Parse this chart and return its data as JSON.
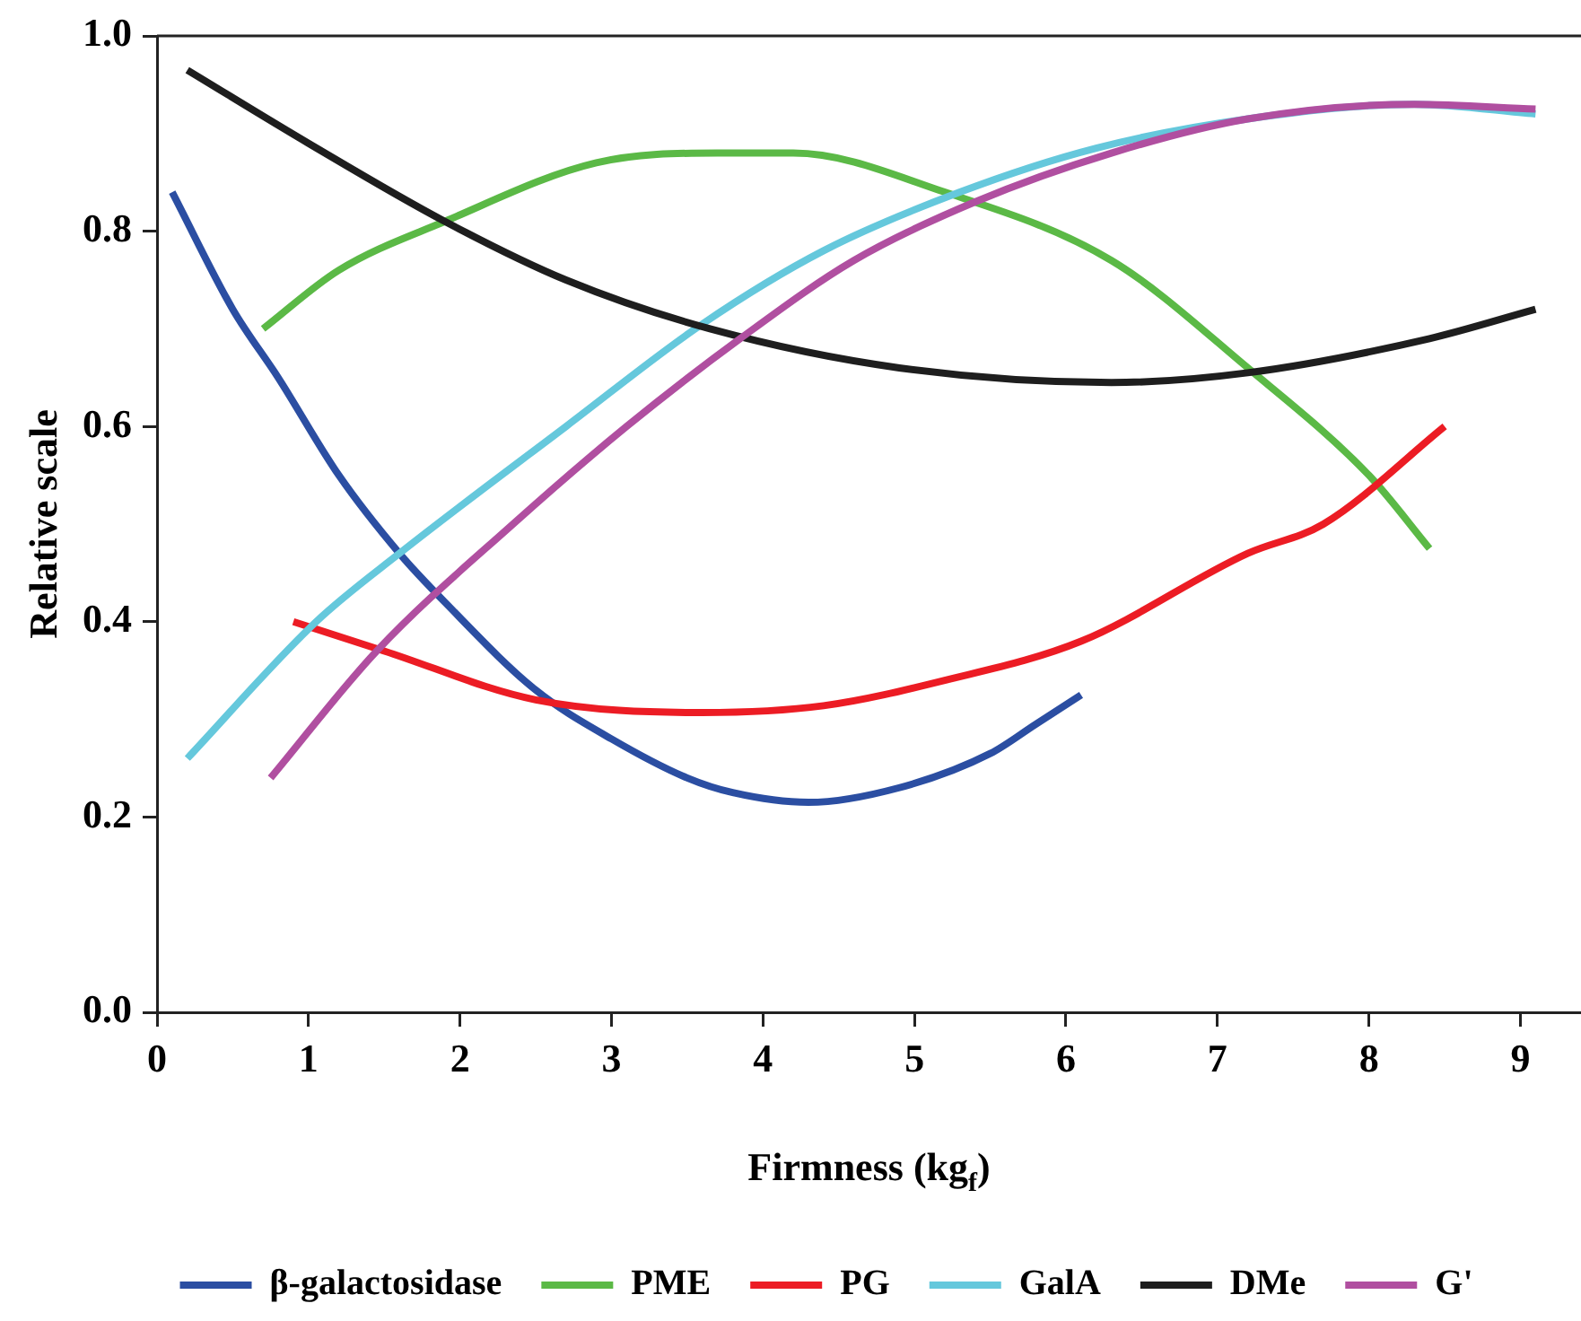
{
  "chart_data": {
    "type": "line",
    "xlabel": "Firmness (kg$_{f}$)",
    "ylabel": "Relative scale",
    "xlim": [
      0,
      9.4
    ],
    "xticks": [
      0,
      1,
      2,
      3,
      4,
      5,
      6,
      7,
      8,
      9
    ],
    "ylim": [
      0,
      1
    ],
    "yticks": [
      {
        "value": 0,
        "label": "0.0"
      },
      0.2,
      0.4,
      0.6,
      0.8,
      {
        "value": 1,
        "label": "1.0"
      }
    ],
    "grid": false,
    "legend": "bottom",
    "marker": "none",
    "line_style": "solid",
    "series": [
      {
        "name": "β-galactosidase",
        "color": "#2b4ea2",
        "x": [
          0.1,
          0.5,
          0.8,
          1.2,
          1.6,
          1.9,
          2.5,
          3.0,
          3.5,
          3.8,
          4.3,
          4.9,
          5.5,
          5.8,
          6.1
        ],
        "values": [
          0.84,
          0.72,
          0.65,
          0.55,
          0.47,
          0.42,
          0.33,
          0.28,
          0.24,
          0.225,
          0.215,
          0.23,
          0.265,
          0.295,
          0.325
        ]
      },
      {
        "name": "PME",
        "color": "#5bb946",
        "x": [
          0.7,
          1.2,
          1.9,
          2.9,
          3.7,
          4.2,
          5.2,
          6.3,
          7.2,
          8.0,
          8.4
        ],
        "values": [
          0.7,
          0.76,
          0.81,
          0.87,
          0.88,
          0.88,
          0.84,
          0.77,
          0.66,
          0.55,
          0.475
        ]
      },
      {
        "name": "PG",
        "color": "#ec1c24",
        "x": [
          0.9,
          1.5,
          2.5,
          3.6,
          4.4,
          5.2,
          6.1,
          7.2,
          7.7,
          8.5
        ],
        "values": [
          0.4,
          0.37,
          0.32,
          0.307,
          0.314,
          0.34,
          0.38,
          0.47,
          0.5,
          0.6
        ]
      },
      {
        "name": "GalA",
        "color": "#65c8dc",
        "x": [
          0.2,
          1.05,
          1.6,
          2.7,
          3.6,
          4.4,
          5.3,
          6.2,
          7.2,
          8.3,
          9.1
        ],
        "values": [
          0.26,
          0.4,
          0.47,
          0.6,
          0.705,
          0.78,
          0.84,
          0.885,
          0.915,
          0.93,
          0.92
        ]
      },
      {
        "name": "DMe",
        "color": "#1e1e1e",
        "x": [
          0.2,
          1.0,
          1.9,
          2.7,
          3.65,
          4.9,
          6.3,
          7.2,
          8.4,
          9.1
        ],
        "values": [
          0.965,
          0.89,
          0.81,
          0.75,
          0.7,
          0.66,
          0.645,
          0.655,
          0.69,
          0.72
        ]
      },
      {
        "name": "G'",
        "color": "#b04fa0",
        "x": [
          0.75,
          1.45,
          2.35,
          3.1,
          3.85,
          4.6,
          5.4,
          6.3,
          7.2,
          8.3,
          9.1
        ],
        "values": [
          0.24,
          0.37,
          0.5,
          0.6,
          0.69,
          0.77,
          0.83,
          0.88,
          0.915,
          0.93,
          0.925
        ]
      }
    ]
  }
}
